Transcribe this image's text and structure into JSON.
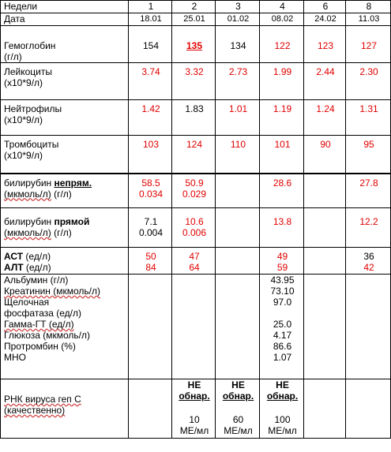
{
  "header": {
    "weeks_label": "Недели",
    "date_label": "Дата",
    "weeks": [
      "1",
      "2",
      "3",
      "4",
      "6",
      "8"
    ],
    "dates": [
      "18.01",
      "25.01",
      "01.02",
      "08.02",
      "24.02",
      "11.03"
    ]
  },
  "rows": {
    "hemoglobin": {
      "name": "Гемоглобин",
      "unit": "(г/л)",
      "values": [
        "154",
        "135",
        "134",
        "122",
        "123",
        "127"
      ]
    },
    "leukocytes": {
      "name": "Лейкоциты",
      "unit": "(х10*9/л)",
      "values": [
        "3.74",
        "3.32",
        "2.73",
        "1.99",
        "2.44",
        "2.30"
      ]
    },
    "neutrophils": {
      "name": "Нейтрофилы",
      "unit": "(х10*9/л)",
      "values": [
        "1.42",
        "1.83",
        "1.01",
        "1.19",
        "1.24",
        "1.31"
      ]
    },
    "platelets": {
      "name": "Тромбоциты",
      "unit": "(х10*9/л)",
      "values": [
        "103",
        "124",
        "110",
        "101",
        "90",
        "95"
      ]
    },
    "bili_indirect": {
      "name_prefix": "билирубин ",
      "name_bold": "непрям.",
      "unit_a": "(мкмоль/л)",
      "unit_b": " (г/л)",
      "values": [
        "58.5",
        "50.9",
        "",
        "28.6",
        "",
        "27.8"
      ],
      "values2": [
        "0.034",
        "0.029",
        "",
        "",
        "",
        ""
      ]
    },
    "bili_direct": {
      "name_prefix": "билирубин ",
      "name_bold": "прямой",
      "unit_a": "(мкмоль/л)",
      "unit_b": " (г/л)",
      "values": [
        "7.1",
        "10.6",
        "",
        "13.8",
        "",
        "12.2"
      ],
      "values2": [
        "0.004",
        "0.006",
        "",
        "",
        "",
        ""
      ]
    },
    "ast_alt": {
      "ast": "АСТ",
      "alt": "АЛТ",
      "unit": " (ед/л)",
      "ast_values": [
        "50",
        "47",
        "",
        "49",
        "",
        "36"
      ],
      "alt_values": [
        "84",
        "64",
        "",
        "59",
        "",
        "42"
      ]
    },
    "biochem": {
      "albumin": "Альбумин (г/л)",
      "creatinine": "Креатинин (мкмоль/л)",
      "alp_1": "Щелочная",
      "alp_2": "фосфатаза (ед/л)",
      "ggt": "Гамма-ГТ  (ед/л)",
      "glucose": "Глюкоза (мкмоль/л)",
      "prothrombin": "Протромбин (%)",
      "inr": "МНО",
      "values": [
        "43.95",
        "73.10",
        "97.0",
        "25.0",
        "4.17",
        "86.6",
        "1.07"
      ]
    },
    "hcv": {
      "name_1": "РНК вируса геп С",
      "name_2": "(качественно)",
      "status_1": "НЕ",
      "status_2": "обнар.",
      "titers": [
        "10",
        "60",
        "100"
      ],
      "units": "МЕ/мл"
    }
  },
  "colors": {
    "red": "#e00000",
    "black": "#000000"
  }
}
